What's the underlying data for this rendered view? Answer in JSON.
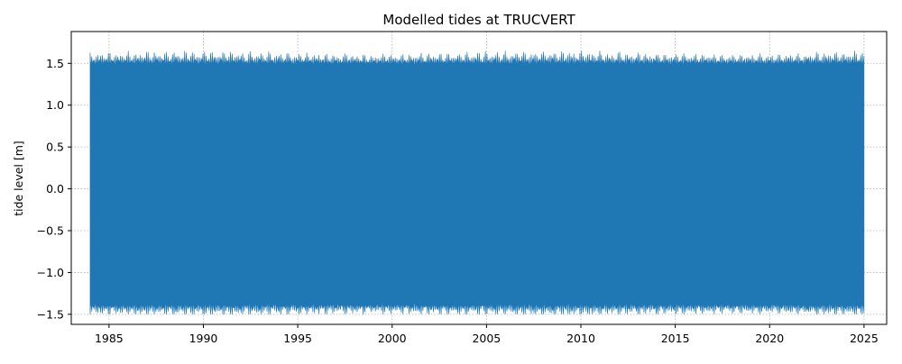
{
  "chart_data": {
    "type": "line",
    "title": "Modelled tides at TRUCVERT",
    "xlabel": "",
    "ylabel": "tide level [m]",
    "x_range": [
      "1984-01-01",
      "2025-01-01"
    ],
    "xlim": [
      1983.0,
      2026.2
    ],
    "ylim": [
      -1.62,
      1.88
    ],
    "x_ticks": [
      1985,
      1990,
      1995,
      2000,
      2005,
      2010,
      2015,
      2020,
      2025
    ],
    "x_tick_labels": [
      "1985",
      "1990",
      "1995",
      "2000",
      "2005",
      "2010",
      "2015",
      "2020",
      "2025"
    ],
    "y_ticks": [
      -1.5,
      -1.0,
      -0.5,
      0.0,
      0.5,
      1.0,
      1.5
    ],
    "y_tick_labels": [
      "−1.5",
      "−1.0",
      "−0.5",
      "0.0",
      "0.5",
      "1.0",
      "1.5"
    ],
    "grid": true,
    "grid_style": "dotted",
    "legend": "none",
    "series": [
      {
        "color": "#1f77b4",
        "y_max": 1.72,
        "y_min": -1.5
      }
    ]
  }
}
